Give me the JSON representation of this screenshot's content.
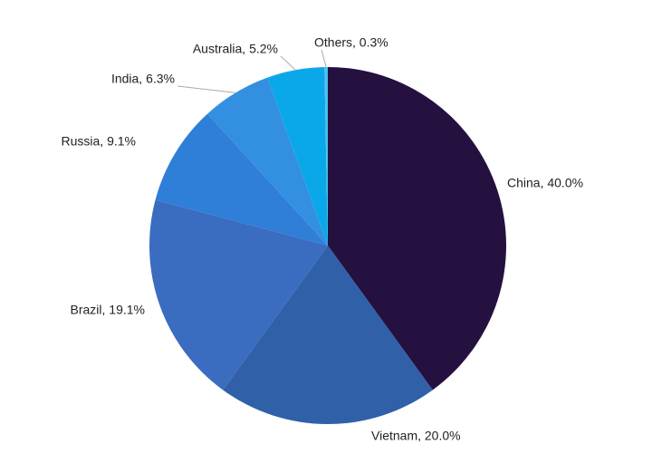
{
  "chart_data": {
    "type": "pie",
    "categories": [
      "China",
      "Vietnam",
      "Brazil",
      "Russia",
      "India",
      "Australia",
      "Others"
    ],
    "values": [
      40.0,
      20.0,
      19.1,
      9.1,
      6.3,
      5.2,
      0.3
    ],
    "value_labels": [
      "China, 40.0%",
      "Vietnam, 20.0%",
      "Brazil, 19.1%",
      "Russia, 9.1%",
      "India, 6.3%",
      "Australia, 5.2%",
      "Others, 0.3%"
    ],
    "colors": [
      "#24113f",
      "#3060a8",
      "#3a6cc0",
      "#2f7ed8",
      "#3390e0",
      "#0aa8e8",
      "#4cc0f0"
    ]
  }
}
